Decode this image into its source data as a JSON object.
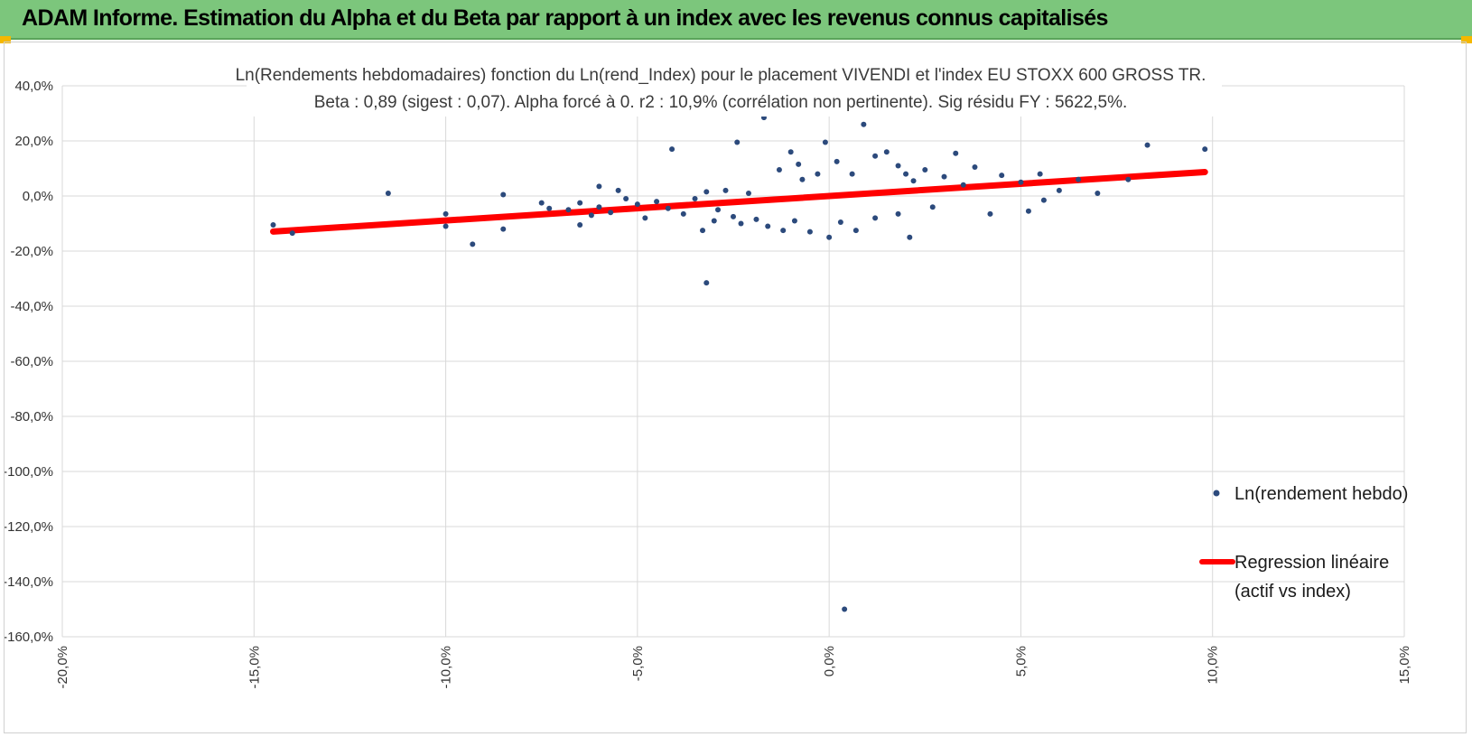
{
  "header": {
    "title": "ADAM Informe. Estimation du Alpha et du Beta par rapport à un index avec les revenus connus capitalisés"
  },
  "colors": {
    "header_bg": "#7cc67c",
    "points": "#2c4a7c",
    "regression": "#ff0000",
    "grid": "#d9d9d9",
    "corner_accent": "#f5b800"
  },
  "chart_data": {
    "type": "scatter",
    "title": "Ln(Rendements hebdomadaires) fonction du Ln(rend_Index) pour le placement VIVENDI et l'index EU STOXX 600 GROSS TR.",
    "subtitle": "Beta : 0,89 (sigest : 0,07). Alpha forcé à 0. r2 : 10,9% (corrélation non pertinente). Sig résidu FY : 5622,5%.",
    "xlabel": "",
    "ylabel": "",
    "xlim": [
      -20,
      15
    ],
    "ylim": [
      -160,
      40
    ],
    "x_ticks": [
      -20,
      -15,
      -10,
      -5,
      0,
      5,
      10,
      15
    ],
    "y_ticks": [
      40,
      20,
      0,
      -20,
      -40,
      -60,
      -80,
      -100,
      -120,
      -140,
      -160
    ],
    "x_tick_labels": [
      "-20,0%",
      "-15,0%",
      "-10,0%",
      "-5,0%",
      "0,0%",
      "5,0%",
      "10,0%",
      "15,0%"
    ],
    "y_tick_labels": [
      "40,0%",
      "20,0%",
      "0,0%",
      "-20,0%",
      "-40,0%",
      "-60,0%",
      "-80,0%",
      "-100,0%",
      "-120,0%",
      "-140,0%",
      "-160,0%"
    ],
    "grid": true,
    "legend_position": "right",
    "series": [
      {
        "name": "Ln(rendement hebdo)",
        "type": "scatter",
        "color": "#2c4a7c",
        "points": [
          [
            -14.5,
            -10.5
          ],
          [
            -14.0,
            -13.5
          ],
          [
            -11.5,
            1.0
          ],
          [
            -10.0,
            -6.5
          ],
          [
            -10.0,
            -11.0
          ],
          [
            -9.3,
            -17.5
          ],
          [
            -8.5,
            0.5
          ],
          [
            -8.5,
            -12.0
          ],
          [
            -7.5,
            -2.5
          ],
          [
            -7.3,
            -4.5
          ],
          [
            -6.8,
            -5.0
          ],
          [
            -6.5,
            -2.5
          ],
          [
            -6.5,
            -10.5
          ],
          [
            -6.2,
            -7.0
          ],
          [
            -6.0,
            3.5
          ],
          [
            -6.0,
            -4.0
          ],
          [
            -5.7,
            -6.0
          ],
          [
            -5.5,
            2.0
          ],
          [
            -5.3,
            -1.0
          ],
          [
            -5.0,
            -3.0
          ],
          [
            -4.8,
            -8.0
          ],
          [
            -4.5,
            -2.0
          ],
          [
            -4.2,
            -4.5
          ],
          [
            -4.1,
            17.0
          ],
          [
            -3.8,
            -6.5
          ],
          [
            -3.5,
            -1.0
          ],
          [
            -3.3,
            -12.5
          ],
          [
            -3.2,
            1.5
          ],
          [
            -3.0,
            -9.0
          ],
          [
            -2.9,
            -5.0
          ],
          [
            -2.7,
            2.0
          ],
          [
            -2.5,
            -7.5
          ],
          [
            -2.4,
            19.5
          ],
          [
            -2.3,
            -10.0
          ],
          [
            -2.1,
            1.0
          ],
          [
            -1.9,
            -8.5
          ],
          [
            -1.7,
            28.5
          ],
          [
            -1.6,
            -11.0
          ],
          [
            -1.3,
            9.5
          ],
          [
            -1.2,
            -12.5
          ],
          [
            -1.0,
            16.0
          ],
          [
            -0.9,
            -9.0
          ],
          [
            -0.8,
            11.5
          ],
          [
            -0.7,
            6.0
          ],
          [
            -0.5,
            -13.0
          ],
          [
            -0.3,
            8.0
          ],
          [
            -0.1,
            19.5
          ],
          [
            0.0,
            -15.0
          ],
          [
            0.2,
            12.5
          ],
          [
            0.3,
            -9.5
          ],
          [
            0.6,
            8.0
          ],
          [
            0.9,
            26.0
          ],
          [
            0.7,
            -12.5
          ],
          [
            1.2,
            14.5
          ],
          [
            1.2,
            -8.0
          ],
          [
            1.5,
            16.0
          ],
          [
            1.8,
            11.0
          ],
          [
            1.8,
            -6.5
          ],
          [
            2.0,
            8.0
          ],
          [
            2.1,
            -15.0
          ],
          [
            2.2,
            5.5
          ],
          [
            2.5,
            9.5
          ],
          [
            2.7,
            -4.0
          ],
          [
            3.0,
            7.0
          ],
          [
            3.3,
            15.5
          ],
          [
            3.5,
            4.0
          ],
          [
            3.8,
            10.5
          ],
          [
            4.2,
            -6.5
          ],
          [
            4.5,
            7.5
          ],
          [
            5.0,
            5.0
          ],
          [
            5.2,
            -5.5
          ],
          [
            5.5,
            8.0
          ],
          [
            5.6,
            -1.5
          ],
          [
            6.0,
            2.0
          ],
          [
            6.5,
            6.0
          ],
          [
            7.0,
            1.0
          ],
          [
            7.8,
            6.0
          ],
          [
            8.3,
            18.5
          ],
          [
            9.8,
            17.0
          ],
          [
            -3.2,
            -31.5
          ],
          [
            0.4,
            -150.0
          ]
        ]
      },
      {
        "name": "Regression linéaire",
        "name_line2": "(actif vs index)",
        "type": "line",
        "color": "#ff0000",
        "points": [
          [
            -14.5,
            -12.9
          ],
          [
            9.8,
            8.7
          ]
        ]
      }
    ]
  }
}
